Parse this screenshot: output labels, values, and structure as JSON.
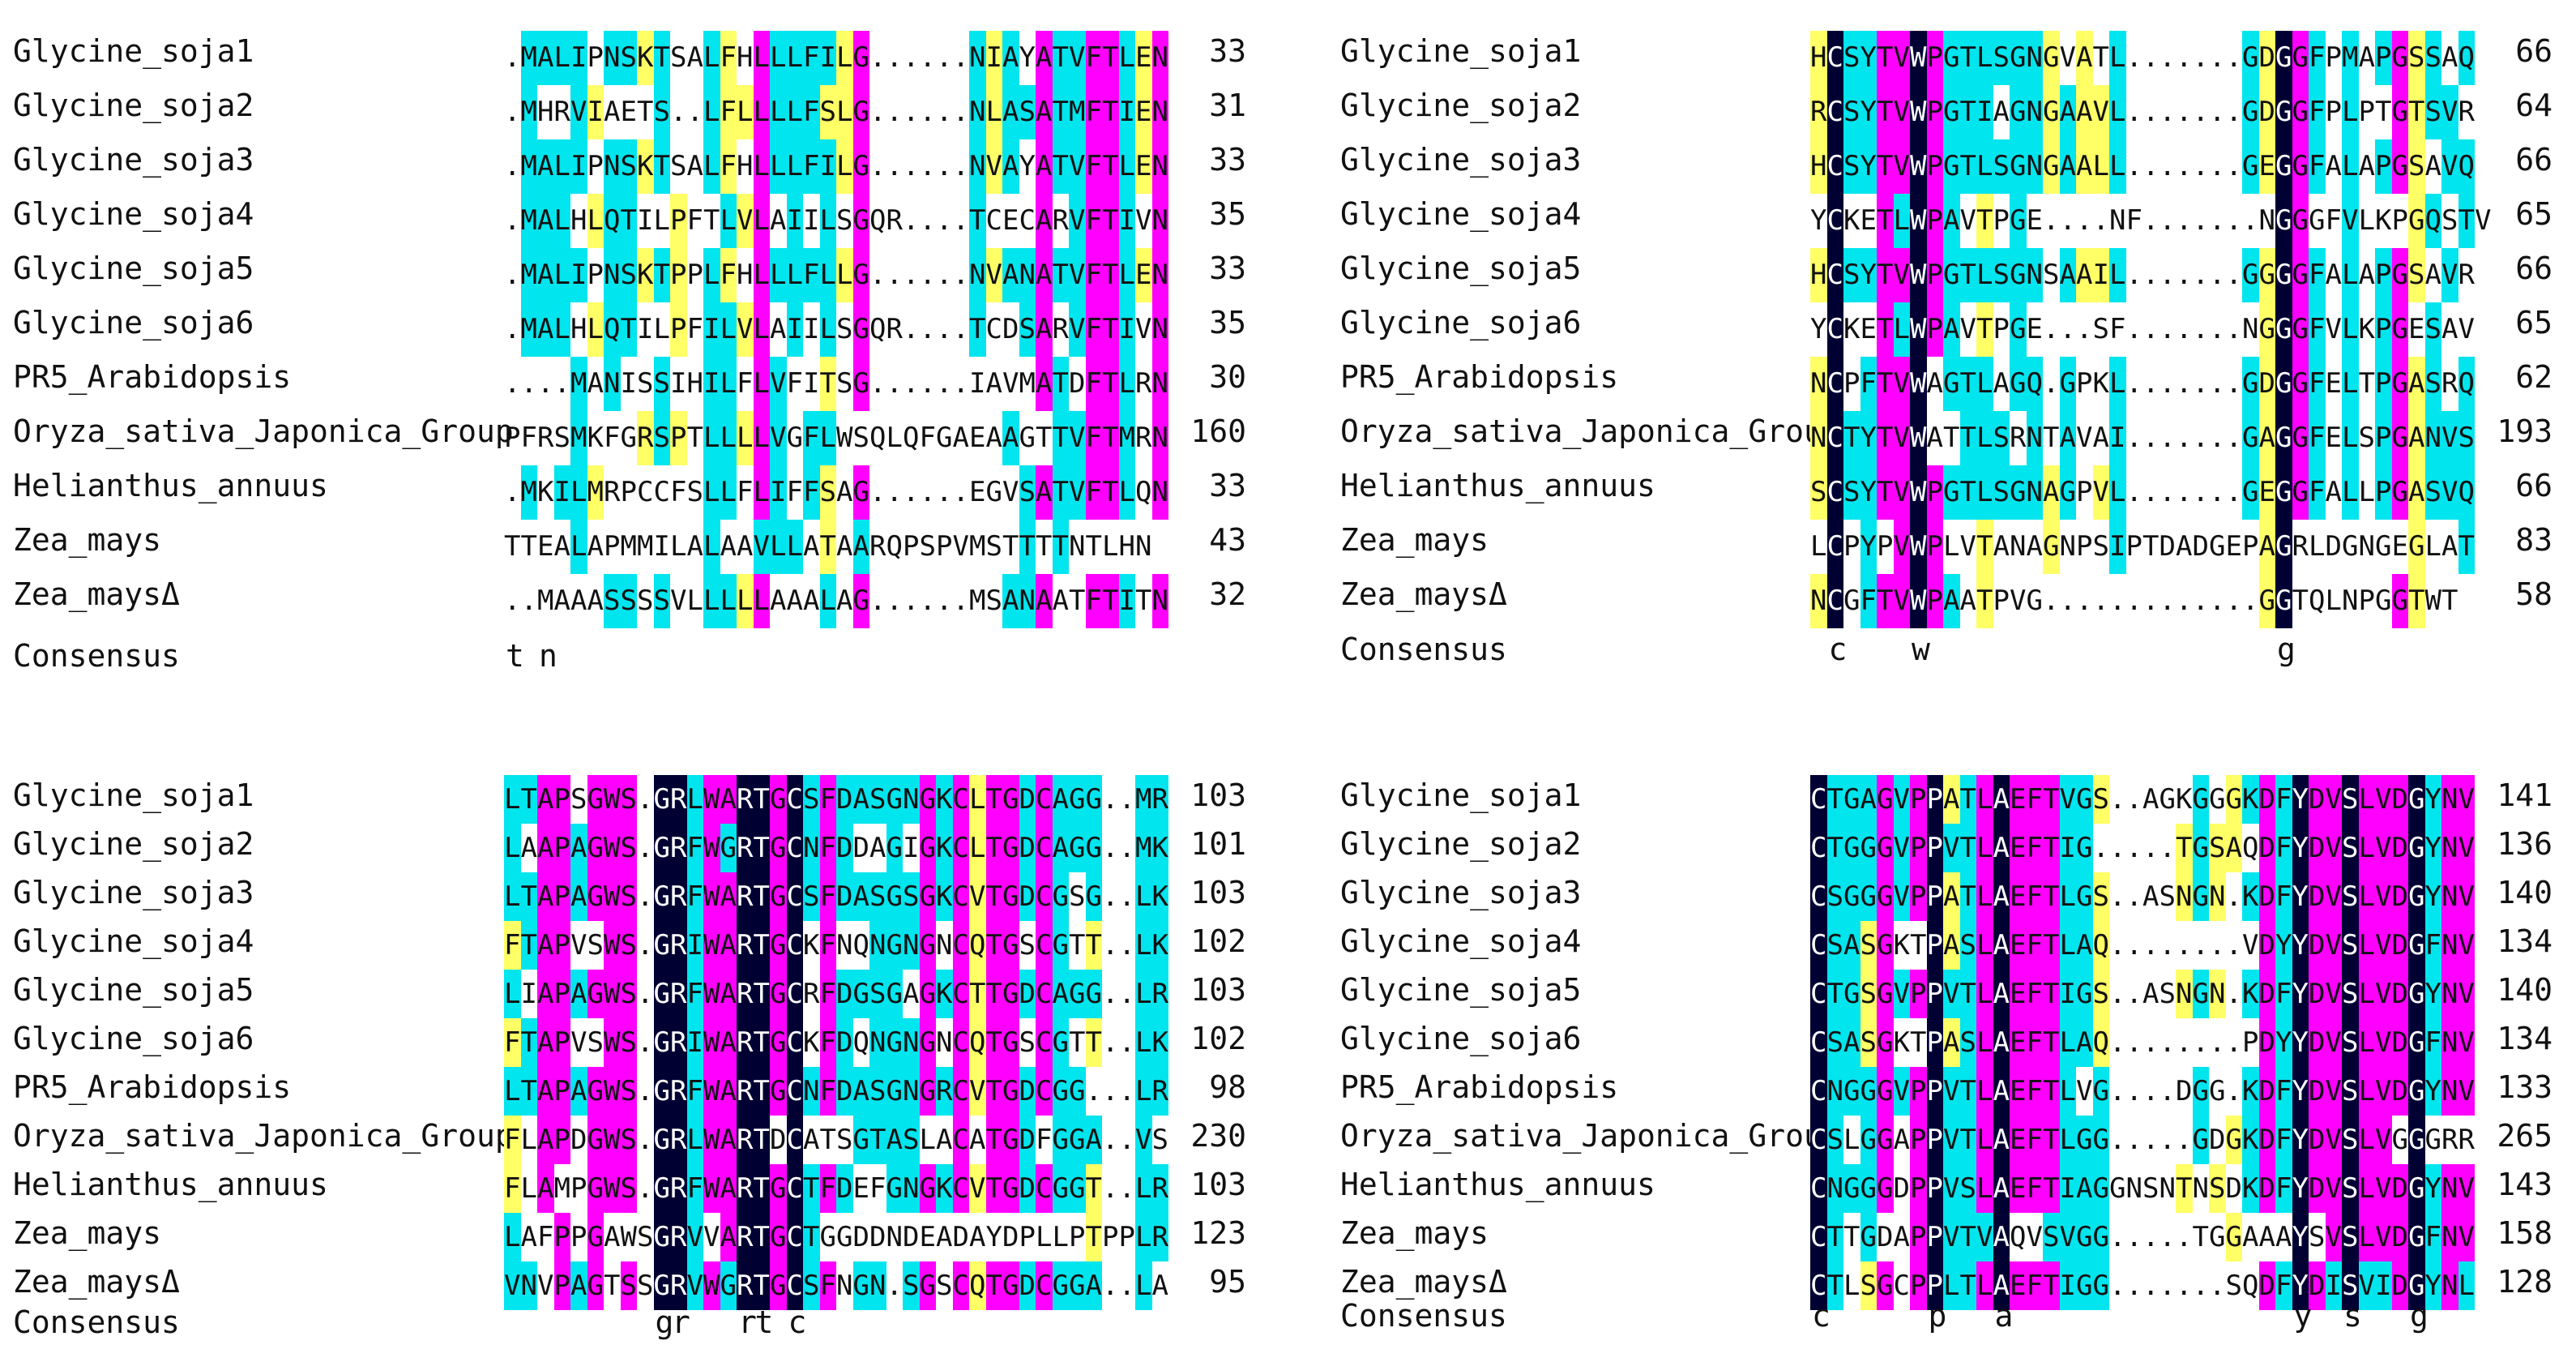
{
  "colors": {
    "identical": "#000033",
    "high_similarity": "#ff00ff",
    "medium_similarity": "#00e5ee",
    "low_similarity": "#ffff66"
  },
  "consensus_label": "Consensus",
  "blocks": [
    {
      "rows": [
        {
          "name": "Glycine_soja1",
          "seq": ".MALIPNSKTSALFHLLLFILG......NIAYATVFTLEN",
          "end": "33"
        },
        {
          "name": "Glycine_soja2",
          "seq": ".MHRVIAETS..LFLLLLFSLG......NLASATMFTIEN",
          "end": "31"
        },
        {
          "name": "Glycine_soja3",
          "seq": ".MALIPNSKTSALFHLLLFILG......NVAYATVFTLEN",
          "end": "33"
        },
        {
          "name": "Glycine_soja4",
          "seq": ".MALHLQTILPFTLVLAIILSGQR....TCECARVFTIVN",
          "end": "35"
        },
        {
          "name": "Glycine_soja5",
          "seq": ".MALIPNSKTPPLFHLLLFLLG......NVANATVFTLEN",
          "end": "33"
        },
        {
          "name": "Glycine_soja6",
          "seq": ".MALHLQTILPFILVLAIILSGQR....TCDSARVFTIVN",
          "end": "35"
        },
        {
          "name": "PR5_Arabidopsis",
          "seq": "....MANISSIHILFLVFITSG......IAVMATDFTLRN",
          "end": "30"
        },
        {
          "name": "Oryza_sativa_Japonica_Group",
          "seq": "PFRSMKFGRSPTLLLLVGFLWSQLQFGAEAAGTTVFTMRN",
          "end": "160"
        },
        {
          "name": "Helianthus_annuus",
          "seq": ".MKILMRPCCFSLLFLIFFSAG......EGVSATVFTLQN",
          "end": "33"
        },
        {
          "name": "Zea_mays",
          "seq": "TTEALAPMMILALAAVLLATAARQPSPVMSTTTTNTLHN",
          "end": "43"
        },
        {
          "name": "Zea_maysΔ",
          "seq": "..MAAASSSSVLLLLLAAALAG......MSANAATFTITN",
          "end": "32"
        }
      ],
      "consensus": "t n"
    },
    {
      "rows": [
        {
          "name": "Glycine_soja1",
          "seq": "HCSYTVWPGTLSGNGVATL.......GDGGFPMAPGSSAQ",
          "end": "66"
        },
        {
          "name": "Glycine_soja2",
          "seq": "RCSYTVWPGTIAGNGAAVL.......GDGGFPLPTGTSVR",
          "end": "64"
        },
        {
          "name": "Glycine_soja3",
          "seq": "HCSYTVWPGTLSGNGAALL.......GEGGFALAPGSAVQ",
          "end": "66"
        },
        {
          "name": "Glycine_soja4",
          "seq": "YCKETLWPAVTPGE....NF.......NGGGFVLKPGQSTV",
          "end": "65"
        },
        {
          "name": "Glycine_soja5",
          "seq": "HCSYTVWPGTLSGNSAAIL.......GGGGFALAPGSAVR",
          "end": "66"
        },
        {
          "name": "Glycine_soja6",
          "seq": "YCKETLWPAVTPGE...SF.......NGGGFVLKPGESAV",
          "end": "65"
        },
        {
          "name": "PR5_Arabidopsis",
          "seq": "NCPFTVWAGTLAGQ.GPKL.......GDGGFELTPGASRQ",
          "end": "62"
        },
        {
          "name": "Oryza_sativa_Japonica_Group",
          "seq": "NCTYTVWATTLSRNTAVAI.......GAGGFELSPGANVS",
          "end": "193"
        },
        {
          "name": "Helianthus_annuus",
          "seq": "SCSYTVWPGTLSGNAGPVL.......GEGGFALLPGASVQ",
          "end": "66"
        },
        {
          "name": "Zea_mays",
          "seq": "LCPYPVWPLVTANAGNPSIPTDADGEPAGRLDGNGEGLAT",
          "end": "83"
        },
        {
          "name": "Zea_maysΔ",
          "seq": "NCGFTVWPAATPVG.............GGTQLNPGGTWT",
          "end": "58"
        }
      ],
      "consensus": "c  w                  g"
    },
    {
      "rows": [
        {
          "name": "Glycine_soja1",
          "seq": "LTAPSGWS.GRLWARTGCSFDASGNGKCLTGDCAGG..MR",
          "end": "103"
        },
        {
          "name": "Glycine_soja2",
          "seq": "LAAPAGWS.GRFWGRTGCNFDDAGIGKCLTGDCAGG..MK",
          "end": "101"
        },
        {
          "name": "Glycine_soja3",
          "seq": "LTAPAGWS.GRFWARTGCSFDASGSGKCVTGDCGSG..LK",
          "end": "103"
        },
        {
          "name": "Glycine_soja4",
          "seq": "FTAPVSWS.GRIWARTGCKFNQNGNGNCQTGSCGTT..LK",
          "end": "102"
        },
        {
          "name": "Glycine_soja5",
          "seq": "LIAPAGWS.GRFWARTGCRFDGSGAGKCTTGDCAGG..LR",
          "end": "103"
        },
        {
          "name": "Glycine_soja6",
          "seq": "FTAPVSWS.GRIWARTGCKFDQNGNGNCQTGSCGTT..LK",
          "end": "102"
        },
        {
          "name": "PR5_Arabidopsis",
          "seq": "LTAPAGWS.GRFWARTGCNFDASGNGRCVTGDCGG...LR",
          "end": "98"
        },
        {
          "name": "Oryza_sativa_Japonica_Group",
          "seq": "FLAPDGWS.GRLWARTDCATSGTASLACATGDFGGA..VS",
          "end": "230"
        },
        {
          "name": "Helianthus_annuus",
          "seq": "FLAMPGWS.GRFWARTGCTFDEFGNGKCVTGDCGGT..LR",
          "end": "103"
        },
        {
          "name": "Zea_mays",
          "seq": "LAFPPGAWSGRVVARTGCTGGDDNDEADAYDPLLPTPPLR",
          "end": "123"
        },
        {
          "name": "Zea_maysΔ",
          "seq": "VNVPAGTSSGRVWGRTGCSFNGN.SGSCQTGDCGGA..LA",
          "end": "95"
        }
      ],
      "consensus": "gr  rt c"
    },
    {
      "rows": [
        {
          "name": "Glycine_soja1",
          "seq": "CTGAGVPPATLAEFTVGS..AGKGGGKDFYDVSLVDGYNV",
          "end": "141"
        },
        {
          "name": "Glycine_soja2",
          "seq": "CTGGGVPPVTLAEFTIG.....TGSAQDFYDVSLVDGYNV",
          "end": "136"
        },
        {
          "name": "Glycine_soja3",
          "seq": "CSGGGVPPATLAEFTLGS..ASNGN.KDFYDVSLVDGYNV",
          "end": "140"
        },
        {
          "name": "Glycine_soja4",
          "seq": "CSASGKTPASLAEFTLAQ........VDYYDVSLVDGFNV",
          "end": "134"
        },
        {
          "name": "Glycine_soja5",
          "seq": "CTGSGVPPVTLAEFTIGS..ASNGN.KDFYDVSLVDGYNV",
          "end": "140"
        },
        {
          "name": "Glycine_soja6",
          "seq": "CSASGKTPASLAEFTLAQ........PDYYDVSLVDGFNV",
          "end": "134"
        },
        {
          "name": "PR5_Arabidopsis",
          "seq": "CNGGGVPPVTLAEFTLVG....DGG.KDFYDVSLVDGYNV",
          "end": "133"
        },
        {
          "name": "Oryza_sativa_Japonica_Group",
          "seq": "CSLGGAPPVTLAEFTLGG.....GDGKDFYDVSLVGGGRR",
          "end": "265"
        },
        {
          "name": "Helianthus_annuus",
          "seq": "CNGGGDPPVSLAEFTIAGGNSNTNSDKDFYDVSLVDGYNV",
          "end": "143"
        },
        {
          "name": "Zea_mays",
          "seq": "CTTGDAPPVTVAQVSVGG.....TGGAAAYSVSLVDGFNV",
          "end": "158"
        },
        {
          "name": "Zea_maysΔ",
          "seq": "CTLSGCPPLTLAEFTIGG.......SQDFYDISVIDGYNL",
          "end": "128"
        }
      ],
      "consensus": "c  p a          y s g"
    }
  ]
}
